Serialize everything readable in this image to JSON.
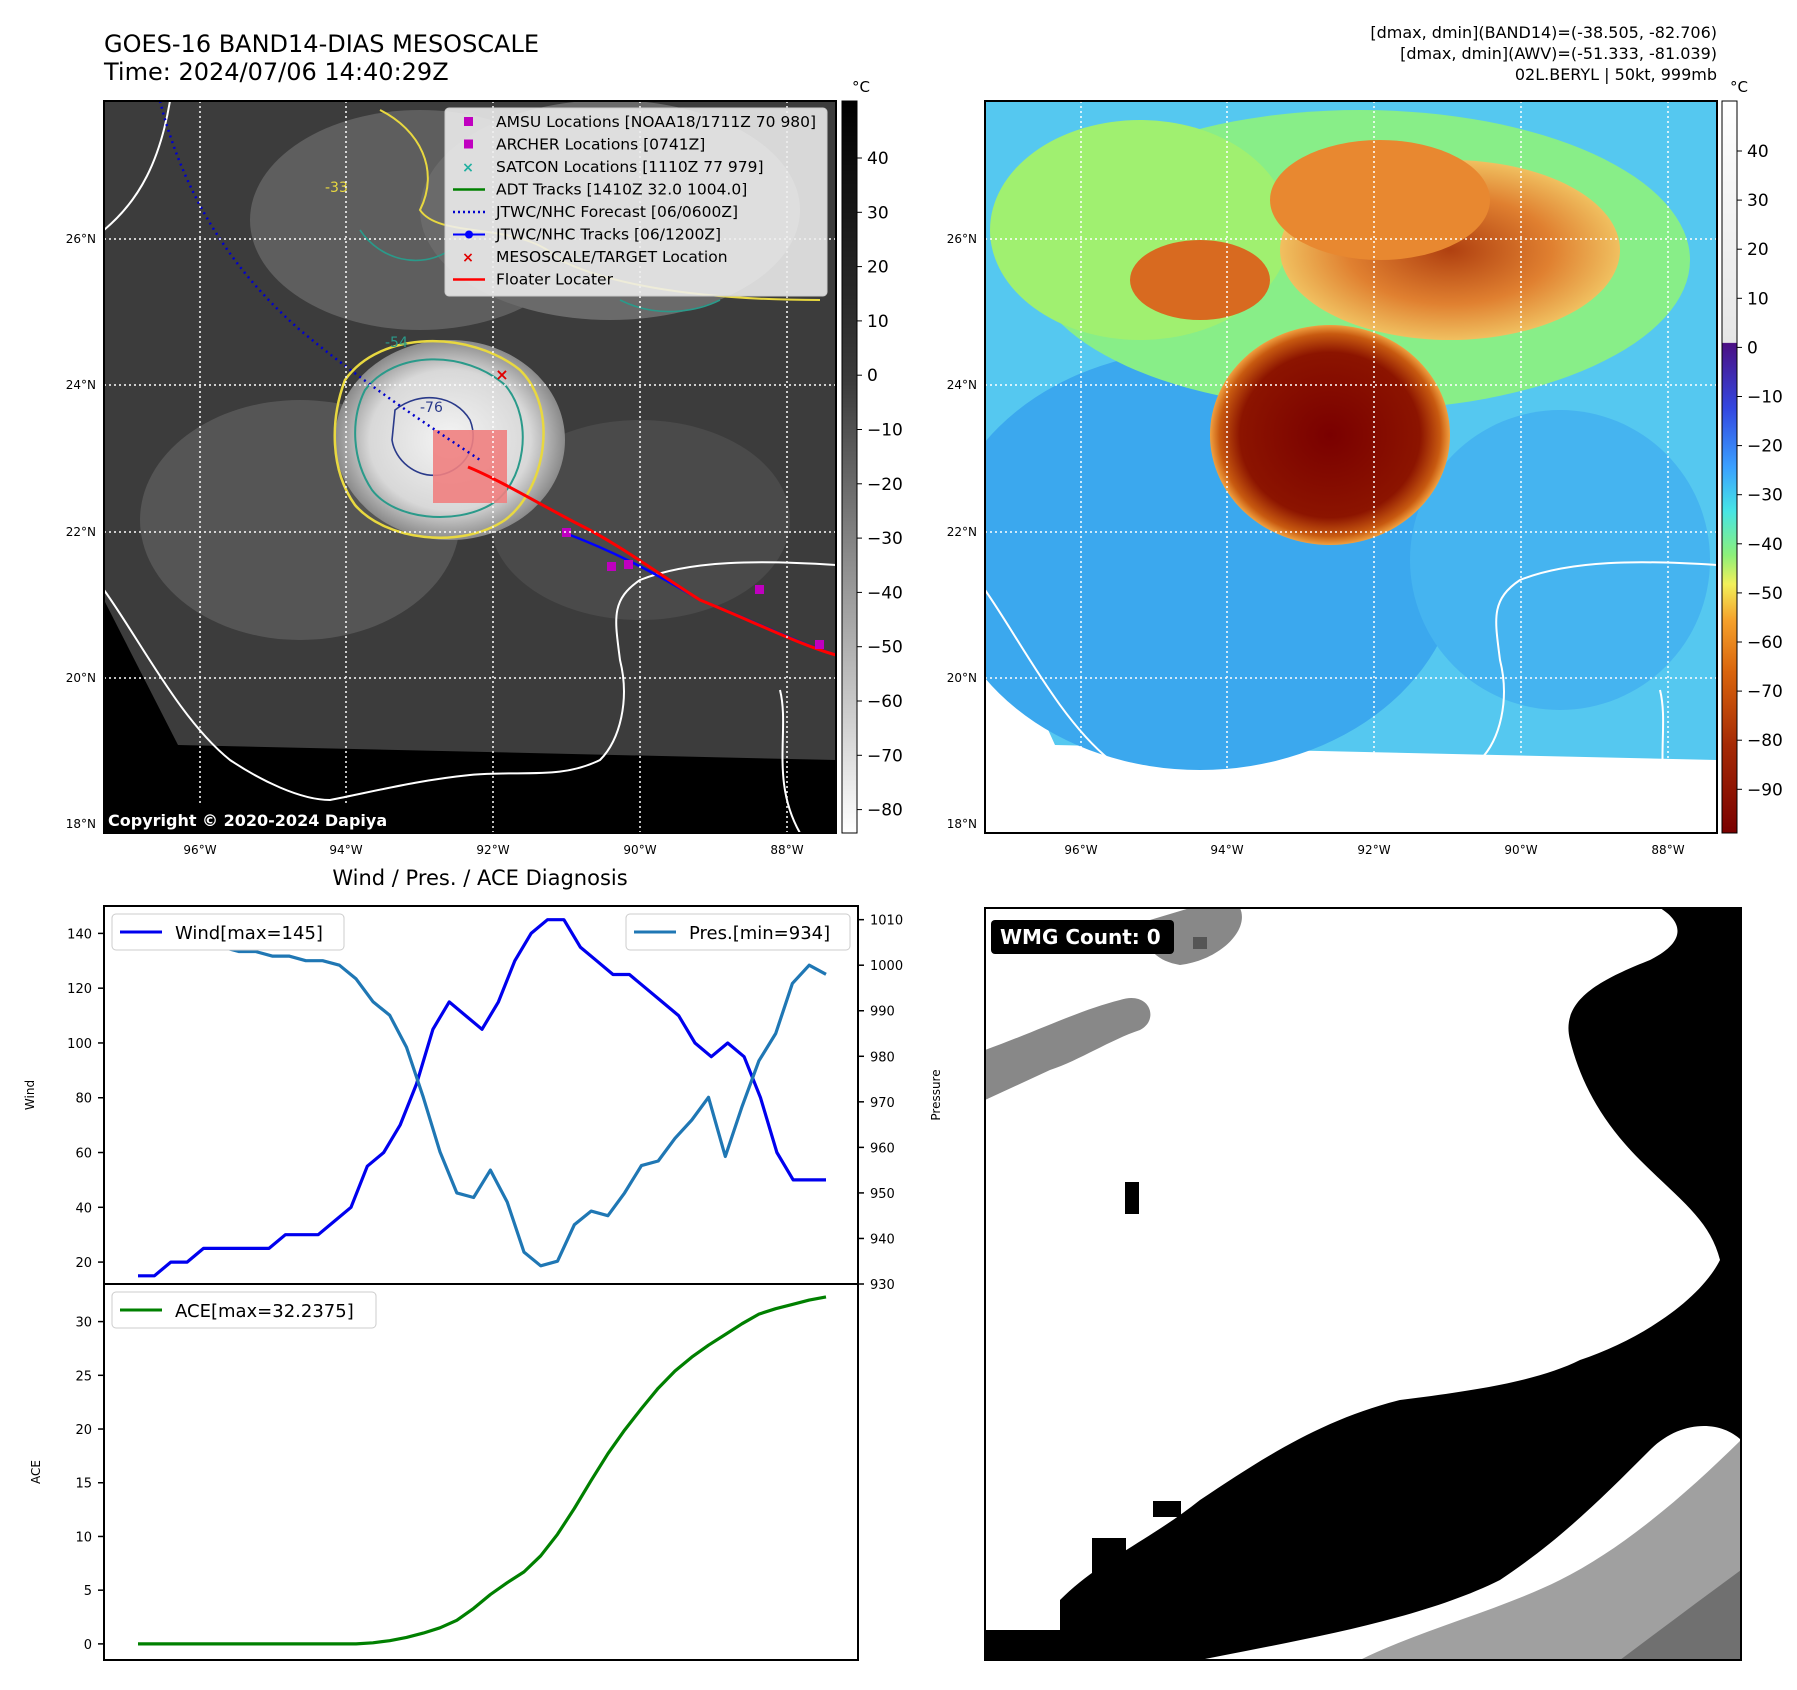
{
  "header": {
    "title_line1": "GOES-16 BAND14-DIAS MESOSCALE",
    "title_line2": "Time: 2024/07/06 14:40:29Z",
    "info_line1": "[dmax, dmin](BAND14)=(-38.505, -82.706)",
    "info_line2": "[dmax, dmin](AWV)=(-51.333, -81.039)",
    "info_line3": "02L.BERYL | 50kt, 999mb"
  },
  "map_axes": {
    "lat_ticks": [
      "26°N",
      "24°N",
      "22°N",
      "20°N",
      "18°N"
    ],
    "lon_ticks": [
      "96°W",
      "94°W",
      "92°W",
      "90°W",
      "88°W"
    ]
  },
  "colorbar_left": {
    "unit": "°C",
    "ticks": [
      "40",
      "30",
      "20",
      "10",
      "0",
      "−10",
      "−20",
      "−30",
      "−40",
      "−50",
      "−60",
      "−70",
      "−80"
    ]
  },
  "colorbar_right": {
    "unit": "°C",
    "ticks": [
      "40",
      "30",
      "20",
      "10",
      "0",
      "−10",
      "−20",
      "−30",
      "−40",
      "−50",
      "−60",
      "−70",
      "−80",
      "−90"
    ]
  },
  "legend_map": [
    {
      "label": "AMSU Locations [NOAA18/1711Z 70 980]",
      "marker": "square",
      "color": "#c000c0"
    },
    {
      "label": "ARCHER Locations [0741Z]",
      "marker": "square",
      "color": "#c000c0"
    },
    {
      "label": "SATCON Locations [1110Z 77 979]",
      "marker": "x",
      "color": "#20b0a0"
    },
    {
      "label": "ADT Tracks [1410Z 32.0 1004.0]",
      "marker": "line",
      "color": "#008000"
    },
    {
      "label": "JTWC/NHC Forecast [06/0600Z]",
      "marker": "dotted",
      "color": "#0000cc"
    },
    {
      "label": "JTWC/NHC Tracks [06/1200Z]",
      "marker": "line-dot",
      "color": "#0000ff"
    },
    {
      "label": "MESOSCALE/TARGET Location",
      "marker": "x",
      "color": "#e00000"
    },
    {
      "label": "Floater Locater",
      "marker": "line",
      "color": "#ff0000"
    }
  ],
  "contour_labels": [
    "-54",
    "-76",
    "-33"
  ],
  "copyright": "Copyright © 2020-2024 Dapiya",
  "wind_panel": {
    "title": "Wind / Pres. / ACE Diagnosis",
    "ylabel_left": "Wind",
    "ylabel_right": "Pressure",
    "legend_wind": "Wind[max=145]",
    "legend_pres": "Pres.[min=934]",
    "wind_ticks": [
      "140",
      "120",
      "100",
      "80",
      "60",
      "40",
      "20"
    ],
    "pres_ticks": [
      "1010",
      "1000",
      "990",
      "980",
      "970",
      "960",
      "950",
      "940",
      "930"
    ]
  },
  "ace_panel": {
    "ylabel": "ACE",
    "legend": "ACE[max=32.2375]",
    "ticks": [
      "30",
      "25",
      "20",
      "15",
      "10",
      "5",
      "0"
    ]
  },
  "wmg_panel": {
    "badge": "WMG Count: 0"
  },
  "colors": {
    "wind": "#0000ee",
    "pressure": "#1f77b4",
    "ace": "#008000",
    "floater_box": "#f08080"
  },
  "chart_data": [
    {
      "type": "line",
      "title": "Wind / Pres. / ACE Diagnosis",
      "ylabel": "Wind",
      "ylim": [
        12,
        150
      ],
      "series": [
        {
          "name": "Wind[max=145]",
          "values": [
            15,
            15,
            20,
            20,
            25,
            25,
            25,
            25,
            25,
            30,
            30,
            30,
            35,
            40,
            55,
            60,
            70,
            85,
            105,
            115,
            110,
            105,
            115,
            130,
            140,
            145,
            145,
            135,
            130,
            125,
            125,
            120,
            115,
            110,
            100,
            95,
            100,
            95,
            80,
            60,
            50,
            50,
            50
          ]
        }
      ]
    },
    {
      "type": "line",
      "ylabel": "Pressure",
      "ylim": [
        930,
        1013
      ],
      "series": [
        {
          "name": "Pres.[min=934]",
          "values": [
            1007,
            1007,
            1007,
            1005,
            1005,
            1004,
            1003,
            1003,
            1002,
            1002,
            1001,
            1001,
            1000,
            997,
            992,
            989,
            982,
            971,
            959,
            950,
            949,
            955,
            948,
            937,
            934,
            935,
            943,
            946,
            945,
            950,
            956,
            957,
            962,
            966,
            971,
            958,
            969,
            979,
            985,
            996,
            1000,
            998
          ]
        }
      ]
    },
    {
      "type": "line",
      "ylabel": "ACE",
      "ylim": [
        -1.5,
        33.5
      ],
      "series": [
        {
          "name": "ACE[max=32.2375]",
          "values": [
            0,
            0,
            0,
            0,
            0,
            0,
            0,
            0,
            0,
            0,
            0,
            0,
            0,
            0,
            0.1,
            0.3,
            0.6,
            1.0,
            1.5,
            2.2,
            3.3,
            4.6,
            5.7,
            6.7,
            8.2,
            10.2,
            12.6,
            15.2,
            17.7,
            19.9,
            21.9,
            23.8,
            25.4,
            26.7,
            27.8,
            28.8,
            29.8,
            30.7,
            31.2,
            31.6,
            32.0,
            32.3
          ]
        }
      ]
    }
  ]
}
